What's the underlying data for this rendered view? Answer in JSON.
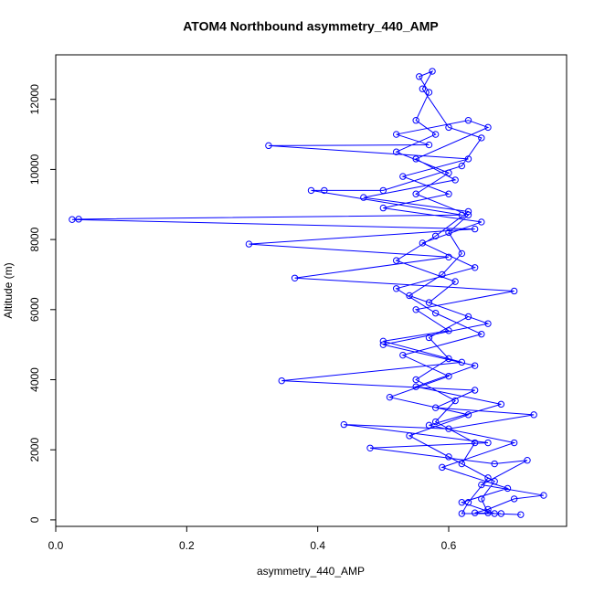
{
  "chart_data": {
    "type": "line",
    "title": "ATOM4 Northbound asymmetry_440_AMP",
    "x_label": "asymmetry_440_AMP",
    "y_label": "Altitude (m)",
    "color": "#0000ff",
    "marker": "open-circle",
    "xlim": [
      0,
      0.78
    ],
    "ylim": [
      -185,
      13270
    ],
    "xticks": [
      {
        "value": 0,
        "label": "0.0"
      },
      0.2,
      0.4,
      0.6
    ],
    "yticks": [
      0,
      2000,
      4000,
      6000,
      8000,
      10000,
      12000
    ],
    "x": [
      0.66,
      0.65,
      0.67,
      0.62,
      0.64,
      0.58,
      0.61,
      0.55,
      0.6,
      0.57,
      0.63,
      0.54,
      0.59,
      0.62,
      0.6,
      0.63,
      0.55,
      0.6,
      0.52,
      0.58,
      0.55,
      0.57,
      0.555,
      0.575,
      0.56,
      0.6,
      0.65,
      0.62,
      0.5,
      0.41,
      0.39,
      0.62,
      0.035,
      0.025,
      0.64,
      0.295,
      0.6,
      0.365,
      0.7,
      0.55,
      0.6,
      0.5,
      0.62,
      0.345,
      0.64,
      0.58,
      0.73,
      0.6,
      0.44,
      0.66,
      0.48,
      0.67,
      0.72,
      0.65,
      0.745,
      0.7,
      0.66,
      0.64,
      0.68,
      0.62,
      0.63,
      0.66,
      0.6,
      0.54,
      0.63,
      0.51,
      0.6,
      0.53,
      0.65,
      0.58,
      0.52,
      0.64,
      0.56,
      0.65,
      0.5,
      0.6,
      0.53,
      0.63,
      0.325,
      0.57,
      0.52,
      0.63,
      0.66,
      0.55,
      0.61,
      0.47,
      0.63,
      0.58,
      0.52,
      0.61,
      0.57,
      0.66,
      0.5,
      0.64,
      0.55,
      0.68,
      0.57,
      0.7,
      0.59,
      0.69,
      0.62,
      0.67,
      0.71
    ],
    "values": [
      200,
      600,
      1100,
      1600,
      2200,
      2800,
      3400,
      4000,
      4600,
      5200,
      5800,
      6400,
      7000,
      7600,
      8200,
      8700,
      9300,
      9900,
      10500,
      11000,
      11400,
      12200,
      12650,
      12800,
      12300,
      11200,
      10900,
      10100,
      9400,
      9400,
      9400,
      8700,
      8580,
      8570,
      8300,
      7870,
      7500,
      6900,
      6530,
      6000,
      5400,
      5100,
      4500,
      3970,
      3700,
      3200,
      3000,
      2600,
      2720,
      2200,
      2050,
      1600,
      1700,
      1000,
      700,
      600,
      300,
      200,
      180,
      180,
      500,
      1200,
      1800,
      2400,
      3000,
      3500,
      4100,
      4700,
      5300,
      5900,
      6600,
      7200,
      7900,
      8500,
      8900,
      9300,
      9800,
      10300,
      10680,
      10700,
      11000,
      11400,
      11200,
      10300,
      9700,
      9200,
      8800,
      8100,
      7400,
      6800,
      6200,
      5600,
      5000,
      4400,
      3800,
      3300,
      2700,
      2200,
      1500,
      900,
      500,
      180,
      150
    ]
  }
}
